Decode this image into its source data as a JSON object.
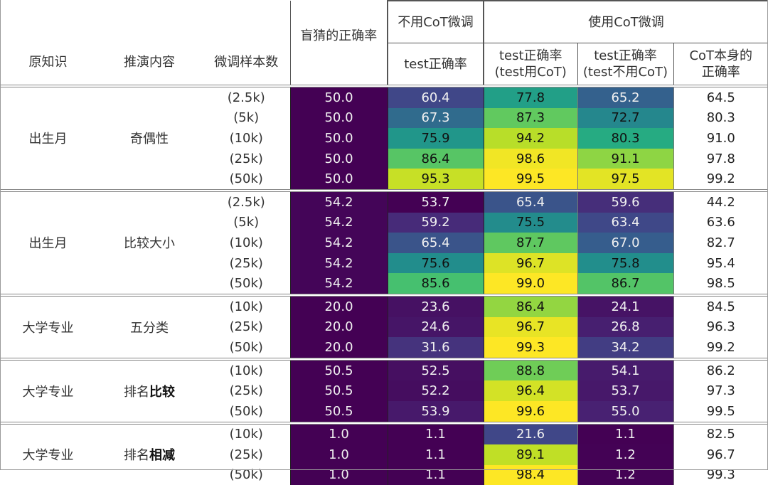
{
  "headers": {
    "original_knowledge": "原知识",
    "deduction": "推演内容",
    "sample_count": "微调样本数",
    "blind_guess": "盲猜的正确率",
    "no_cot_group": "不用CoT微调",
    "cot_group": "使用CoT微调",
    "test_acc": "test正确率",
    "test_acc_cot_l1": "test正确率",
    "test_acc_cot_l2": "(test用CoT)",
    "test_acc_nocot_l1": "test正确率",
    "test_acc_nocot_l2": "(test不用CoT)",
    "cot_self_l1": "CoT本身的",
    "cot_self_l2": "正确率"
  },
  "chart_data": {
    "type": "heatmap",
    "colormap": "viridis",
    "color_scale": "per-group over blind/test columns",
    "columns": [
      "盲猜的正确率",
      "test正确率 (不用CoT微调)",
      "test正确率(test用CoT)",
      "test正确率(test不用CoT)",
      "CoT本身的正确率"
    ],
    "groups": [
      {
        "knowledge": "出生月",
        "task": [
          "奇偶性",
          ""
        ],
        "rows": [
          {
            "size": "(2.5k)",
            "values": [
              50.0,
              60.4,
              77.8,
              65.2,
              64.5
            ]
          },
          {
            "size": "(5k)",
            "values": [
              50.0,
              67.3,
              87.3,
              72.7,
              80.3
            ]
          },
          {
            "size": "(10k)",
            "values": [
              50.0,
              75.9,
              94.2,
              80.3,
              91.0
            ]
          },
          {
            "size": "(25k)",
            "values": [
              50.0,
              86.4,
              98.6,
              91.1,
              97.8
            ]
          },
          {
            "size": "(50k)",
            "values": [
              50.0,
              95.3,
              99.5,
              97.5,
              99.2
            ]
          }
        ]
      },
      {
        "knowledge": "出生月",
        "task": [
          "比较大小",
          ""
        ],
        "rows": [
          {
            "size": "(2.5k)",
            "values": [
              54.2,
              53.7,
              65.4,
              59.6,
              44.2
            ]
          },
          {
            "size": "(5k)",
            "values": [
              54.2,
              59.2,
              75.5,
              63.4,
              63.6
            ]
          },
          {
            "size": "(10k)",
            "values": [
              54.2,
              65.4,
              87.7,
              67.0,
              82.7
            ]
          },
          {
            "size": "(25k)",
            "values": [
              54.2,
              75.6,
              96.7,
              75.8,
              95.4
            ]
          },
          {
            "size": "(50k)",
            "values": [
              54.2,
              85.6,
              99.0,
              86.7,
              98.5
            ]
          }
        ]
      },
      {
        "knowledge": "大学专业",
        "task": [
          "五分类",
          ""
        ],
        "rows": [
          {
            "size": "(10k)",
            "values": [
              20.0,
              23.6,
              86.4,
              24.1,
              84.5
            ]
          },
          {
            "size": "(25k)",
            "values": [
              20.0,
              24.6,
              96.7,
              26.8,
              96.3
            ]
          },
          {
            "size": "(50k)",
            "values": [
              20.0,
              31.6,
              99.3,
              34.2,
              99.2
            ]
          }
        ]
      },
      {
        "knowledge": "大学专业",
        "task": [
          "排名",
          "比较"
        ],
        "rows": [
          {
            "size": "(10k)",
            "values": [
              50.5,
              52.5,
              88.8,
              54.1,
              86.2
            ]
          },
          {
            "size": "(25k)",
            "values": [
              50.5,
              52.2,
              96.4,
              53.7,
              97.3
            ]
          },
          {
            "size": "(50k)",
            "values": [
              50.5,
              53.9,
              99.6,
              55.0,
              99.5
            ]
          }
        ]
      },
      {
        "knowledge": "大学专业",
        "task": [
          "排名",
          "相减"
        ],
        "rows": [
          {
            "size": "(10k)",
            "values": [
              1.0,
              1.1,
              21.6,
              1.1,
              82.5
            ]
          },
          {
            "size": "(25k)",
            "values": [
              1.0,
              1.1,
              89.1,
              1.2,
              96.7
            ]
          },
          {
            "size": "(50k)",
            "values": [
              1.0,
              1.1,
              98.4,
              1.2,
              99.3
            ]
          }
        ]
      }
    ]
  }
}
